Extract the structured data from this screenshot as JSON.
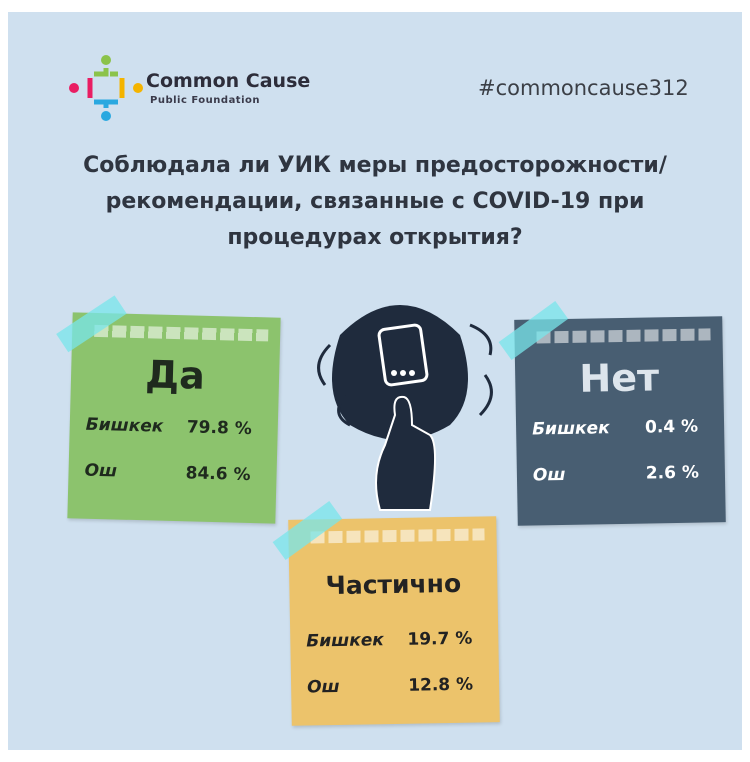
{
  "header": {
    "logo_name": "Common Cause",
    "logo_sub": "Public Foundation",
    "hashtag": "#commoncause312"
  },
  "question": [
    "Соблюдала ли УИК меры предосторожности/",
    "рекомендации, связанные с COVID-19 при",
    "процедурах открытия?"
  ],
  "cards": [
    {
      "title": "Да",
      "rows": [
        {
          "label": "Бишкек",
          "value": "79.8 %"
        },
        {
          "label": "Ош",
          "value": "84.6 %"
        }
      ]
    },
    {
      "title": "Нет",
      "rows": [
        {
          "label": "Бишкек",
          "value": "0.4 %"
        },
        {
          "label": "Ош",
          "value": "2.6 %"
        }
      ]
    },
    {
      "title": "Частично",
      "rows": [
        {
          "label": "Бишкек",
          "value": "19.7 %"
        },
        {
          "label": "Ош",
          "value": "12.8 %"
        }
      ]
    }
  ]
}
